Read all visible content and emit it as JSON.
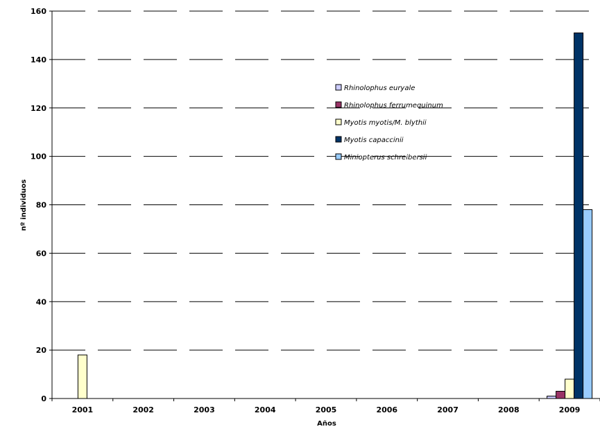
{
  "chart_data": {
    "type": "bar",
    "title": "",
    "xlabel": "Años",
    "ylabel": "nº individuos",
    "ylim": [
      0,
      160
    ],
    "yticks": [
      0,
      20,
      40,
      60,
      80,
      100,
      120,
      140,
      160
    ],
    "categories": [
      "2001",
      "2002",
      "2003",
      "2004",
      "2005",
      "2006",
      "2007",
      "2008",
      "2009"
    ],
    "grid": "horizontal dashed",
    "legend_position": "center-right",
    "series": [
      {
        "name": "Rhinolophus euryale",
        "color": "#ccccff",
        "values": [
          0,
          0,
          0,
          0,
          0,
          0,
          0,
          0,
          1
        ]
      },
      {
        "name": "Rhinolophus ferrumequinum",
        "color": "#993366",
        "values": [
          0,
          0,
          0,
          0,
          0,
          0,
          0,
          0,
          3
        ]
      },
      {
        "name": "Myotis myotis/M. blythii",
        "color": "#ffffcc",
        "values": [
          18,
          0,
          0,
          0,
          0,
          0,
          0,
          0,
          8
        ]
      },
      {
        "name": "Myotis capaccinii",
        "color": "#003366",
        "values": [
          0,
          0,
          0,
          0,
          0,
          0,
          0,
          0,
          151
        ]
      },
      {
        "name": "Miniopterus schreibersii",
        "color": "#99ccff",
        "values": [
          0,
          0,
          0,
          0,
          0,
          0,
          0,
          0,
          78
        ]
      }
    ]
  }
}
